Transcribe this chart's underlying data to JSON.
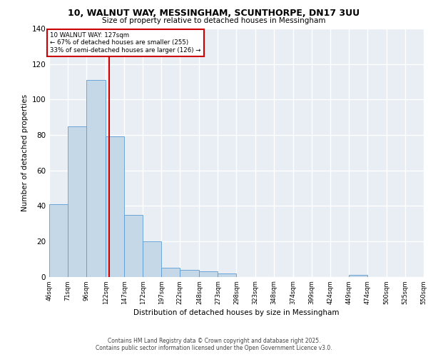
{
  "title1": "10, WALNUT WAY, MESSINGHAM, SCUNTHORPE, DN17 3UU",
  "title2": "Size of property relative to detached houses in Messingham",
  "xlabel": "Distribution of detached houses by size in Messingham",
  "ylabel": "Number of detached properties",
  "bar_values": [
    41,
    85,
    111,
    79,
    35,
    20,
    5,
    4,
    3,
    2,
    0,
    0,
    0,
    0,
    0,
    0,
    1,
    0,
    0,
    0
  ],
  "bin_edges": [
    46,
    71,
    96,
    122,
    147,
    172,
    197,
    222,
    248,
    273,
    298,
    323,
    348,
    374,
    399,
    424,
    449,
    474,
    500,
    525,
    550
  ],
  "bin_labels": [
    "46sqm",
    "71sqm",
    "96sqm",
    "122sqm",
    "147sqm",
    "172sqm",
    "197sqm",
    "222sqm",
    "248sqm",
    "273sqm",
    "298sqm",
    "323sqm",
    "348sqm",
    "374sqm",
    "399sqm",
    "424sqm",
    "449sqm",
    "474sqm",
    "500sqm",
    "525sqm",
    "550sqm"
  ],
  "bar_color": "#c5d8e8",
  "bar_edge_color": "#5b9bd5",
  "property_value": 127,
  "property_label": "10 WALNUT WAY: 127sqm",
  "annotation_line1": "← 67% of detached houses are smaller (255)",
  "annotation_line2": "33% of semi-detached houses are larger (126) →",
  "vline_color": "#cc0000",
  "annotation_box_color": "#cc0000",
  "background_color": "#e8eef4",
  "grid_color": "#ffffff",
  "ylim": [
    0,
    140
  ],
  "yticks": [
    0,
    20,
    40,
    60,
    80,
    100,
    120,
    140
  ],
  "footer1": "Contains HM Land Registry data © Crown copyright and database right 2025.",
  "footer2": "Contains public sector information licensed under the Open Government Licence v3.0."
}
